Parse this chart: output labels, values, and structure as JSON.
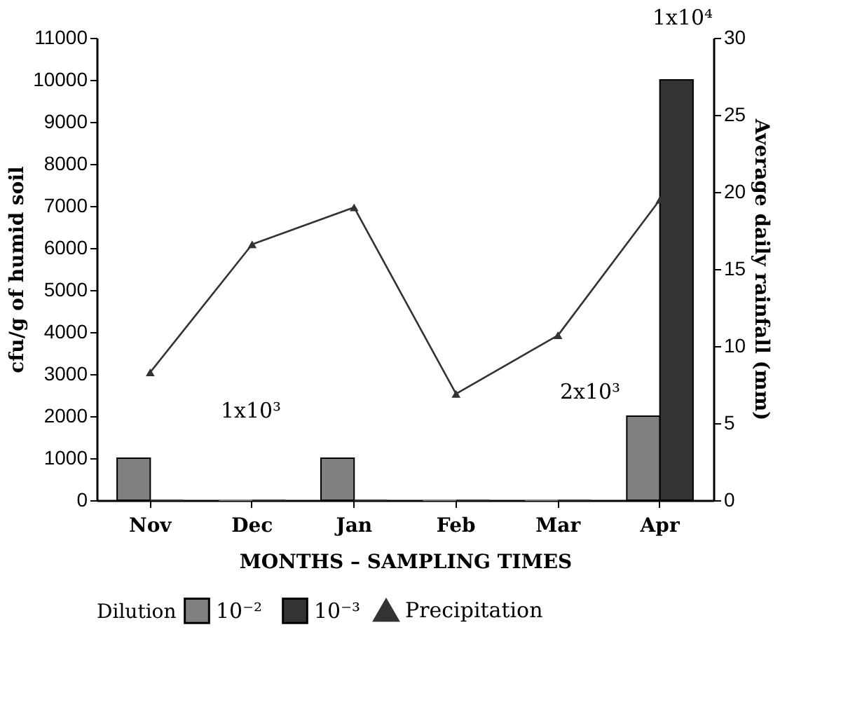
{
  "chart_data": {
    "type": "bar",
    "xlabel": "MONTHS – SAMPLING TIMES",
    "ylabel": "cfu/g of humid soil",
    "y2label": "Average daily rainfall (mm)",
    "legend_title": "Dilution",
    "categories": [
      "Nov",
      "Dec",
      "Jan",
      "Feb",
      "Mar",
      "Apr"
    ],
    "series": [
      {
        "name": "10⁻²",
        "color": "#808080",
        "values": [
          1000,
          0,
          1000,
          0,
          0,
          2000
        ]
      },
      {
        "name": "10⁻³",
        "color": "#333333",
        "values": [
          0,
          0,
          0,
          0,
          0,
          10000
        ]
      },
      {
        "name": "Precipitation",
        "type": "line",
        "axis": "y2",
        "color": "#333333",
        "marker": "triangle",
        "values": [
          8.3,
          16.6,
          19.0,
          6.9,
          10.7,
          19.5
        ]
      }
    ],
    "ylim": [
      0,
      11000
    ],
    "yticks": [
      0,
      1000,
      2000,
      3000,
      4000,
      5000,
      6000,
      7000,
      8000,
      9000,
      10000,
      11000
    ],
    "y2lim": [
      0,
      30
    ],
    "y2ticks": [
      0,
      5,
      10,
      15,
      20,
      25,
      30
    ],
    "annotations": [
      "1x10³",
      "2x10³",
      "1x10⁴"
    ],
    "grid": false,
    "legend": "bottom"
  }
}
